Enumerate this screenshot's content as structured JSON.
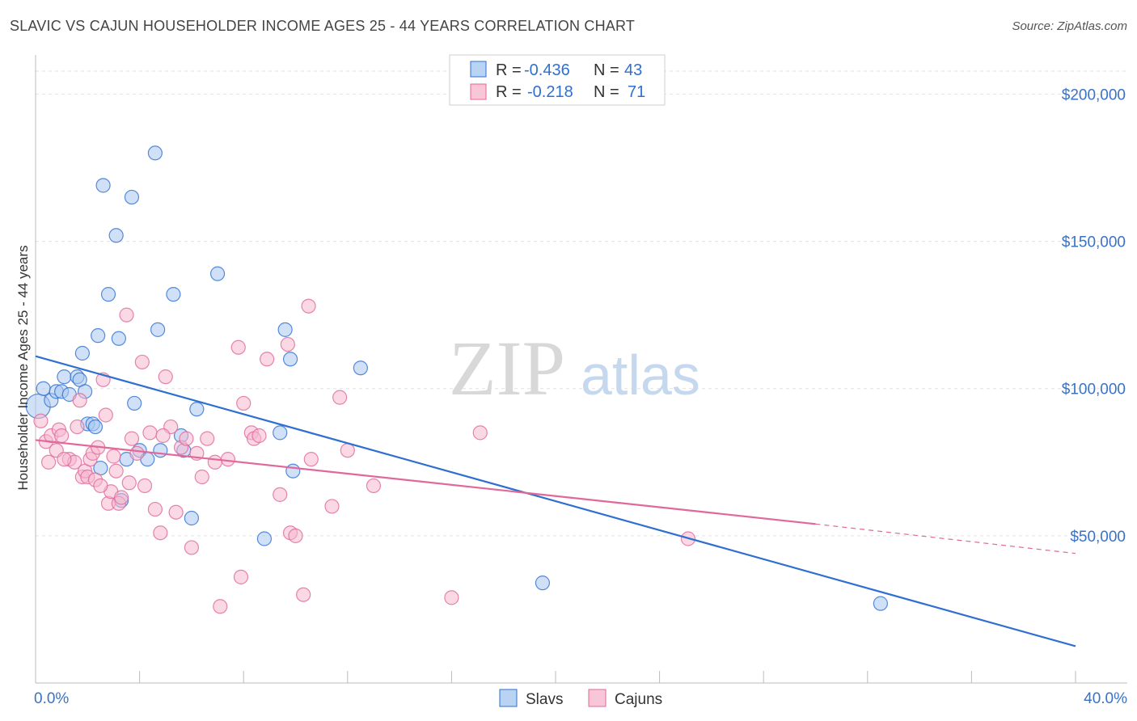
{
  "title": "SLAVIC VS CAJUN HOUSEHOLDER INCOME AGES 25 - 44 YEARS CORRELATION CHART",
  "source": "Source: ZipAtlas.com",
  "watermark": {
    "zip": "ZIP",
    "atlas": "atlas"
  },
  "colors": {
    "slavs": "#2f6fd1",
    "slavs_fill": "#a9c8f0",
    "cajuns": "#e0689a",
    "cajuns_fill": "#f5b8cd"
  },
  "legend": {
    "rows": [
      {
        "r_label": "R =",
        "r_value": "-0.436",
        "n_label": "N =",
        "n_value": "43"
      },
      {
        "r_label": "R =",
        "r_value": "-0.218",
        "n_label": "N =",
        "n_value": "71"
      }
    ],
    "bottom": [
      "Slavs",
      "Cajuns"
    ]
  },
  "chart_data": {
    "type": "scatter",
    "xlabel": "",
    "ylabel": "Householder Income Ages 25 - 44 years",
    "xlim": [
      0,
      40
    ],
    "ylim": [
      0,
      210000
    ],
    "x_tick_labels": [
      "0.0%",
      "40.0%"
    ],
    "y_ticks": [
      50000,
      100000,
      150000,
      200000
    ],
    "y_tick_labels": [
      "$50,000",
      "$100,000",
      "$150,000",
      "$200,000"
    ],
    "grid": "horizontal dashed",
    "series": [
      {
        "name": "Slavs",
        "r": -0.436,
        "n": 43,
        "trend": {
          "x": [
            0,
            40
          ],
          "y": [
            111000,
            12500
          ]
        },
        "points": [
          [
            0.1,
            94000
          ],
          [
            0.3,
            100000
          ],
          [
            0.6,
            96000
          ],
          [
            0.8,
            99000
          ],
          [
            1.0,
            99000
          ],
          [
            1.1,
            104000
          ],
          [
            1.3,
            98000
          ],
          [
            1.6,
            104000
          ],
          [
            1.7,
            103000
          ],
          [
            1.8,
            112000
          ],
          [
            1.9,
            99000
          ],
          [
            2.0,
            88000
          ],
          [
            2.2,
            88000
          ],
          [
            2.3,
            87000
          ],
          [
            2.4,
            118000
          ],
          [
            2.5,
            73000
          ],
          [
            2.6,
            169000
          ],
          [
            2.8,
            132000
          ],
          [
            3.1,
            152000
          ],
          [
            3.2,
            117000
          ],
          [
            3.3,
            62000
          ],
          [
            3.5,
            76000
          ],
          [
            3.7,
            165000
          ],
          [
            3.8,
            95000
          ],
          [
            4.0,
            79000
          ],
          [
            4.3,
            76000
          ],
          [
            4.6,
            180000
          ],
          [
            4.7,
            120000
          ],
          [
            4.8,
            79000
          ],
          [
            5.3,
            132000
          ],
          [
            5.6,
            84000
          ],
          [
            5.7,
            79000
          ],
          [
            6.0,
            56000
          ],
          [
            6.2,
            93000
          ],
          [
            7.0,
            139000
          ],
          [
            8.8,
            49000
          ],
          [
            9.4,
            85000
          ],
          [
            9.6,
            120000
          ],
          [
            9.8,
            110000
          ],
          [
            9.9,
            72000
          ],
          [
            12.5,
            107000
          ],
          [
            19.5,
            34000
          ],
          [
            32.5,
            27000
          ]
        ]
      },
      {
        "name": "Cajuns",
        "r": -0.218,
        "n": 71,
        "trend": {
          "x": [
            0,
            30
          ],
          "y": [
            82500,
            54000
          ]
        },
        "trend_dashed": {
          "x": [
            30,
            40
          ],
          "y": [
            54000,
            44000
          ]
        },
        "points": [
          [
            0.2,
            89000
          ],
          [
            0.4,
            82000
          ],
          [
            0.5,
            75000
          ],
          [
            0.6,
            84000
          ],
          [
            0.8,
            79000
          ],
          [
            0.9,
            86000
          ],
          [
            1.0,
            84000
          ],
          [
            1.3,
            76000
          ],
          [
            1.5,
            75000
          ],
          [
            1.6,
            87000
          ],
          [
            1.7,
            96000
          ],
          [
            1.8,
            70000
          ],
          [
            1.9,
            72000
          ],
          [
            2.0,
            70000
          ],
          [
            2.1,
            76000
          ],
          [
            2.2,
            78000
          ],
          [
            2.3,
            69000
          ],
          [
            2.4,
            80000
          ],
          [
            2.6,
            103000
          ],
          [
            2.7,
            91000
          ],
          [
            2.8,
            61000
          ],
          [
            2.9,
            65000
          ],
          [
            3.0,
            77000
          ],
          [
            3.1,
            72000
          ],
          [
            3.2,
            61000
          ],
          [
            3.3,
            63000
          ],
          [
            3.5,
            125000
          ],
          [
            3.6,
            68000
          ],
          [
            3.7,
            83000
          ],
          [
            3.9,
            78000
          ],
          [
            4.1,
            109000
          ],
          [
            4.2,
            67000
          ],
          [
            4.4,
            85000
          ],
          [
            4.6,
            59000
          ],
          [
            4.8,
            51000
          ],
          [
            5.0,
            104000
          ],
          [
            5.2,
            87000
          ],
          [
            5.4,
            58000
          ],
          [
            5.6,
            80000
          ],
          [
            5.8,
            83000
          ],
          [
            6.0,
            46000
          ],
          [
            6.2,
            78000
          ],
          [
            6.4,
            70000
          ],
          [
            6.6,
            83000
          ],
          [
            7.1,
            26000
          ],
          [
            7.4,
            76000
          ],
          [
            7.8,
            114000
          ],
          [
            7.9,
            36000
          ],
          [
            8.0,
            95000
          ],
          [
            8.3,
            85000
          ],
          [
            8.4,
            83000
          ],
          [
            8.6,
            84000
          ],
          [
            8.9,
            110000
          ],
          [
            9.4,
            64000
          ],
          [
            9.7,
            115000
          ],
          [
            9.8,
            51000
          ],
          [
            10.0,
            50000
          ],
          [
            10.3,
            30000
          ],
          [
            10.5,
            128000
          ],
          [
            10.6,
            76000
          ],
          [
            11.4,
            60000
          ],
          [
            11.7,
            97000
          ],
          [
            12.0,
            79000
          ],
          [
            13.0,
            67000
          ],
          [
            16.0,
            29000
          ],
          [
            17.1,
            85000
          ],
          [
            25.1,
            49000
          ],
          [
            2.5,
            67000
          ],
          [
            6.9,
            75000
          ],
          [
            4.9,
            84000
          ],
          [
            1.1,
            76000
          ]
        ]
      }
    ]
  }
}
